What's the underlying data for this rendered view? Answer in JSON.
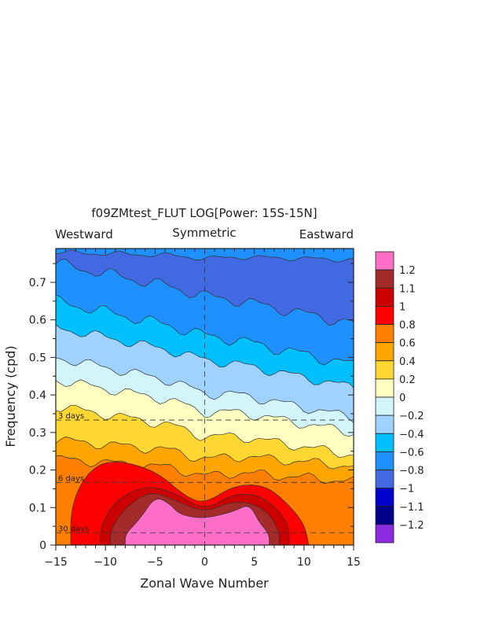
{
  "chart_data": {
    "type": "heatmap",
    "title": "f09ZMtest_FLUT LOG[Power: 15S-15N]",
    "subtitle_left": "Westward",
    "subtitle_center": "Symmetric",
    "subtitle_right": "Eastward",
    "xlabel": "Zonal Wave Number",
    "ylabel": "Frequency (cpd)",
    "xlim": [
      -15,
      15
    ],
    "ylim": [
      0,
      0.8
    ],
    "x_ticks": [
      -15,
      -10,
      -5,
      0,
      5,
      10,
      15
    ],
    "x_tick_labels": [
      "−15",
      "−10",
      "−5",
      "0",
      "5",
      "10",
      "15"
    ],
    "y_ticks": [
      0,
      0.1,
      0.2,
      0.3,
      0.4,
      0.5,
      0.6,
      0.7
    ],
    "y_tick_labels": [
      "0",
      "0.1",
      "0.2",
      "0.3",
      "0.4",
      "0.5",
      "0.6",
      "0.7"
    ],
    "period_lines": [
      {
        "label": "3 days",
        "frequency": 0.333
      },
      {
        "label": "6 days",
        "frequency": 0.167
      },
      {
        "label": "30 days",
        "frequency": 0.033
      }
    ],
    "colorbar": {
      "levels": [
        "1.2",
        "1.1",
        "1",
        "0.8",
        "0.6",
        "0.4",
        "0.2",
        "0",
        "−0.2",
        "−0.4",
        "−0.6",
        "−0.8",
        "−1",
        "−1.1",
        "−1.2"
      ],
      "colors": [
        "#ff6ec7",
        "#a52a2a",
        "#cc0000",
        "#ff0000",
        "#ff7f00",
        "#ffa500",
        "#ffd732",
        "#ffffc0",
        "#d2f5fa",
        "#a0d2ff",
        "#00bfff",
        "#1e90ff",
        "#4169e1",
        "#0000cd",
        "#00008b",
        "#8a2be2"
      ]
    },
    "contour_bands": [
      {
        "value": "-0.8",
        "fill": "#4169e1",
        "left": 0.78,
        "right": 0.76,
        "amp": 0.005
      },
      {
        "value": "-0.6",
        "fill": "#1e90ff",
        "left": 0.75,
        "right": 0.59,
        "amp": 0.012
      },
      {
        "value": "-0.4",
        "fill": "#00bfff",
        "left": 0.65,
        "right": 0.48,
        "amp": 0.012
      },
      {
        "value": "-0.2",
        "fill": "#a0d2ff",
        "left": 0.58,
        "right": 0.42,
        "amp": 0.01
      },
      {
        "value": "0",
        "fill": "#d2f5fa",
        "left": 0.5,
        "right": 0.34,
        "amp": 0.01
      },
      {
        "value": "0.2",
        "fill": "#ffffc0",
        "left": 0.44,
        "right": 0.3,
        "amp": 0.01
      },
      {
        "value": "0.4",
        "fill": "#ffd732",
        "left": 0.37,
        "right": 0.24,
        "amp": 0.01
      },
      {
        "value": "0.6",
        "fill": "#ffa500",
        "left": 0.28,
        "right": 0.21,
        "amp": 0.01
      },
      {
        "value": "0.8",
        "fill": "#ff7f00",
        "left": 0.23,
        "right": 0.17,
        "amp": 0.01
      }
    ],
    "hot_blobs": [
      {
        "value": "1",
        "fill": "#ff0000",
        "pts": [
          [
            -13.5,
            0.0
          ],
          [
            -13.5,
            0.1
          ],
          [
            -12,
            0.19
          ],
          [
            -9.5,
            0.23
          ],
          [
            -5,
            0.2
          ],
          [
            -2,
            0.13
          ],
          [
            0,
            0.11
          ],
          [
            3,
            0.16
          ],
          [
            6,
            0.16
          ],
          [
            8,
            0.12
          ],
          [
            10,
            0.06
          ],
          [
            10.5,
            0.0
          ]
        ]
      },
      {
        "value": "1.1",
        "fill": "#cc0000",
        "pts": [
          [
            -10.5,
            0.0
          ],
          [
            -10.5,
            0.05
          ],
          [
            -9,
            0.12
          ],
          [
            -6,
            0.16
          ],
          [
            -3,
            0.14
          ],
          [
            0,
            0.09
          ],
          [
            3,
            0.14
          ],
          [
            6,
            0.13
          ],
          [
            8.5,
            0.06
          ],
          [
            8.5,
            0.0
          ]
        ]
      },
      {
        "value": "1.2",
        "fill": "#a52a2a",
        "pts": [
          [
            -9.5,
            0.0
          ],
          [
            -9.5,
            0.04
          ],
          [
            -8,
            0.1
          ],
          [
            -5.5,
            0.145
          ],
          [
            -3,
            0.12
          ],
          [
            0,
            0.085
          ],
          [
            3,
            0.12
          ],
          [
            6,
            0.1
          ],
          [
            7.5,
            0.04
          ],
          [
            7.5,
            0.0
          ]
        ]
      },
      {
        "value": ">1.2",
        "fill": "#ff6ec7",
        "pts": [
          [
            -8,
            0.0
          ],
          [
            -8,
            0.03
          ],
          [
            -6.5,
            0.07
          ],
          [
            -5,
            0.13
          ],
          [
            -3.5,
            0.11
          ],
          [
            -2.5,
            0.08
          ],
          [
            0,
            0.07
          ],
          [
            3,
            0.09
          ],
          [
            4.5,
            0.11
          ],
          [
            5.5,
            0.06
          ],
          [
            6.5,
            0.03
          ],
          [
            6.5,
            0.0
          ]
        ]
      }
    ]
  }
}
